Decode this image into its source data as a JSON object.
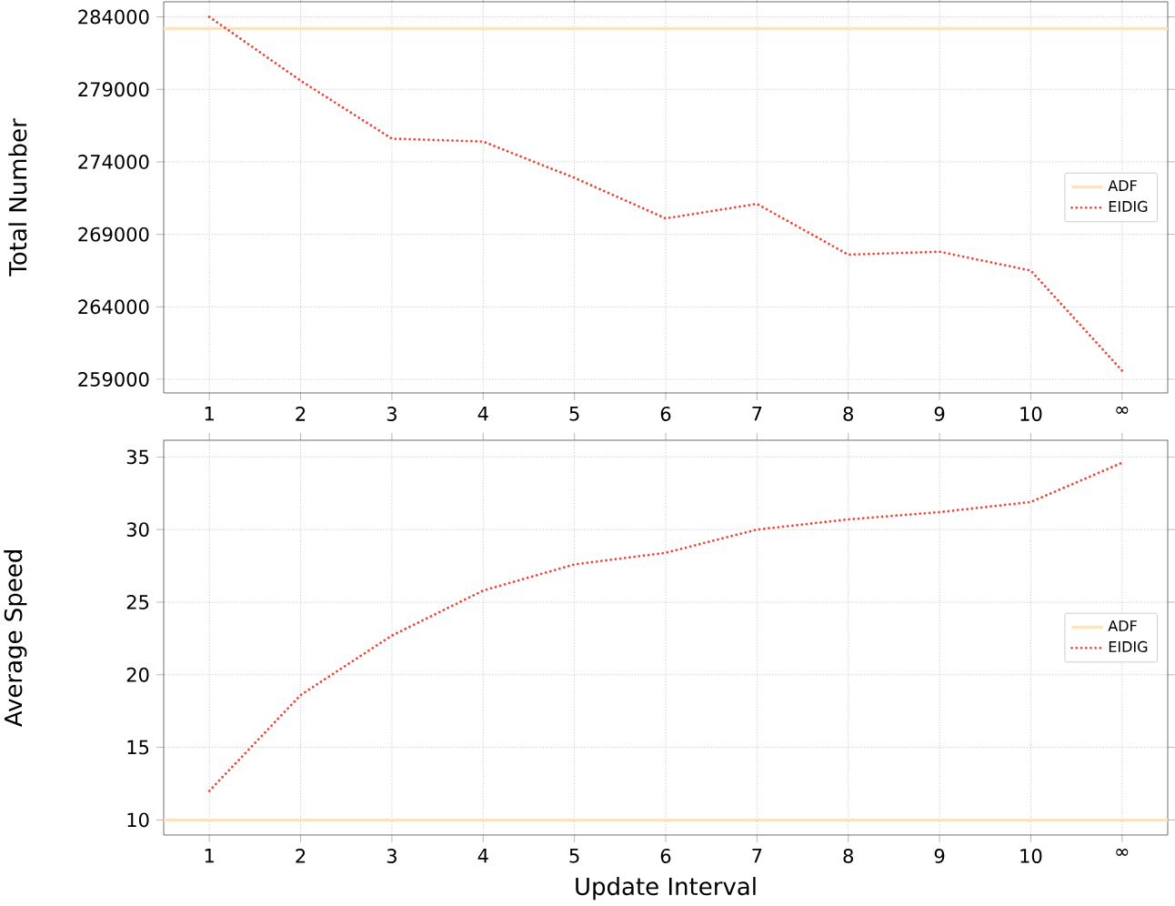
{
  "chart_data": [
    {
      "type": "line",
      "ylabel": "Total Number",
      "categories": [
        "1",
        "2",
        "3",
        "4",
        "5",
        "6",
        "7",
        "8",
        "9",
        "10",
        "∞"
      ],
      "ylim": [
        258060,
        285040
      ],
      "yticks": [
        259000,
        264000,
        269000,
        274000,
        279000,
        284000
      ],
      "grid": true,
      "legend": "right",
      "ref_lines": [
        {
          "axis": "y",
          "value": 283200,
          "label": "ADF",
          "color": "#fde2c2",
          "line_style": "solid"
        }
      ],
      "series": [
        {
          "name": "EIDIG",
          "color": "#ea4a3c",
          "line_style": "dotted",
          "values": [
            284000,
            279600,
            275600,
            275400,
            272900,
            270100,
            271100,
            267600,
            267800,
            266500,
            259600
          ]
        }
      ]
    },
    {
      "type": "line",
      "ylabel": "Average Speed",
      "xlabel": "Update Interval",
      "categories": [
        "1",
        "2",
        "3",
        "4",
        "5",
        "6",
        "7",
        "8",
        "9",
        "10",
        "∞"
      ],
      "ylim": [
        8.96,
        36.15
      ],
      "yticks": [
        10,
        15,
        20,
        25,
        30,
        35
      ],
      "grid": true,
      "legend": "right",
      "ref_lines": [
        {
          "axis": "y",
          "value": 10,
          "label": "ADF",
          "color": "#fde2c2",
          "line_style": "solid"
        }
      ],
      "series": [
        {
          "name": "EIDIG",
          "color": "#ea4a3c",
          "line_style": "dotted",
          "values": [
            12.0,
            18.6,
            22.7,
            25.8,
            27.6,
            28.4,
            30.0,
            30.7,
            31.2,
            31.9,
            34.6
          ]
        }
      ]
    }
  ]
}
